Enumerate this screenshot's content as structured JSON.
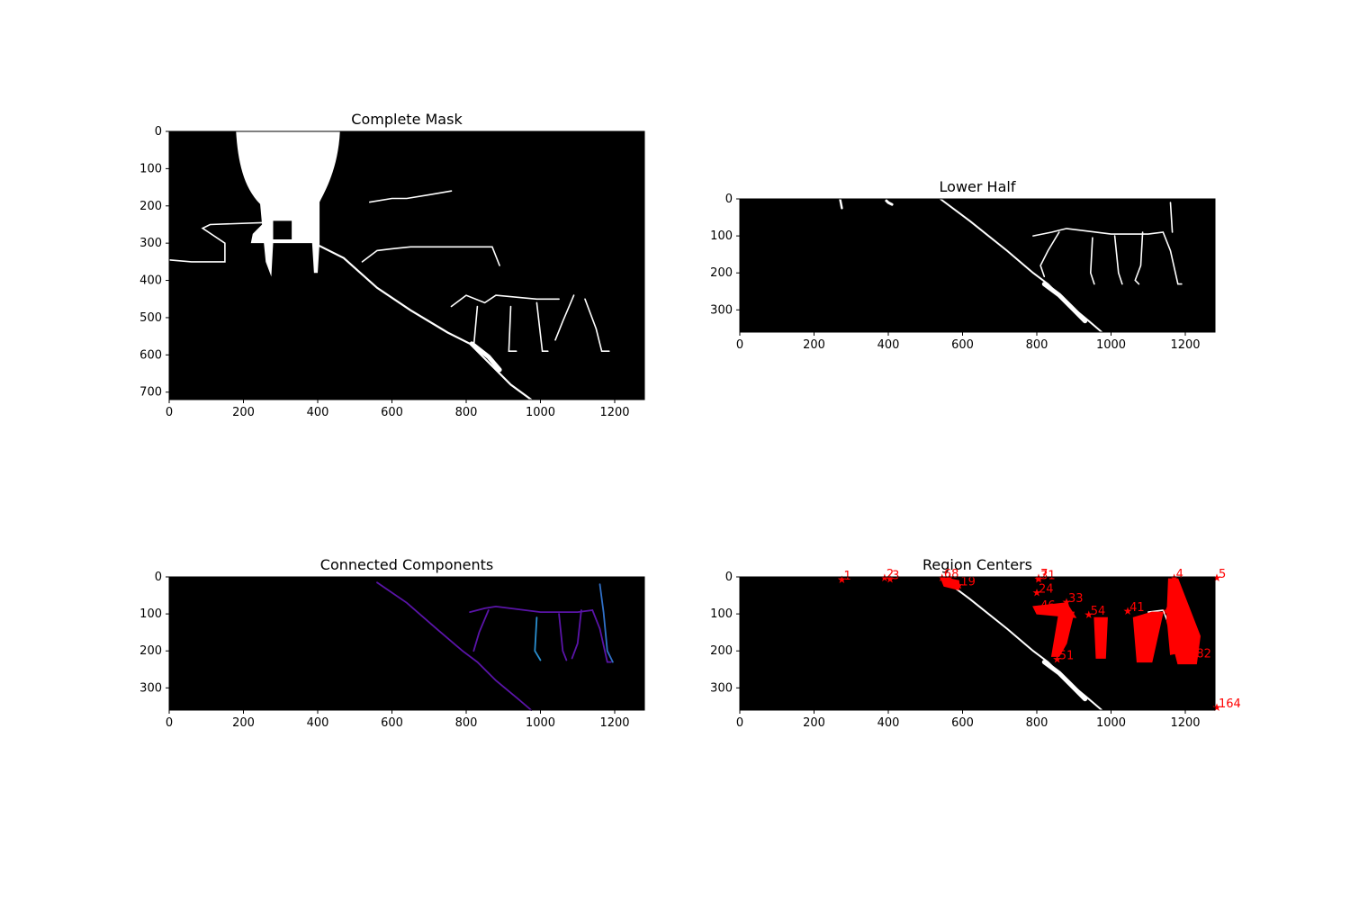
{
  "chart_data": [
    {
      "id": "complete-mask",
      "type": "image",
      "title": "Complete Mask",
      "xlim": [
        0,
        1280
      ],
      "ylim": [
        720,
        0
      ],
      "xticks": [
        0,
        200,
        400,
        600,
        800,
        1000,
        1200
      ],
      "yticks": [
        0,
        100,
        200,
        300,
        400,
        500,
        600,
        700
      ]
    },
    {
      "id": "lower-half",
      "type": "image",
      "title": "Lower Half",
      "xlim": [
        0,
        1280
      ],
      "ylim": [
        360,
        0
      ],
      "xticks": [
        0,
        200,
        400,
        600,
        800,
        1000,
        1200
      ],
      "yticks": [
        0,
        100,
        200,
        300
      ]
    },
    {
      "id": "connected-components",
      "type": "image",
      "title": "Connected Components",
      "xlim": [
        0,
        1280
      ],
      "ylim": [
        360,
        0
      ],
      "xticks": [
        0,
        200,
        400,
        600,
        800,
        1000,
        1200
      ],
      "yticks": [
        0,
        100,
        200,
        300
      ]
    },
    {
      "id": "region-centers",
      "type": "scatter",
      "title": "Region Centers",
      "xlim": [
        0,
        1280
      ],
      "ylim": [
        360,
        0
      ],
      "xticks": [
        0,
        200,
        400,
        600,
        800,
        1000,
        1200
      ],
      "yticks": [
        0,
        100,
        200,
        300
      ],
      "marker_color": "#ff0000",
      "points": [
        {
          "label": "1",
          "x": 275,
          "y": 10
        },
        {
          "label": "2",
          "x": 390,
          "y": 5
        },
        {
          "label": "3",
          "x": 405,
          "y": 8
        },
        {
          "label": "4",
          "x": 1170,
          "y": 5
        },
        {
          "label": "5",
          "x": 1285,
          "y": 5
        },
        {
          "label": "6",
          "x": 545,
          "y": 5
        },
        {
          "label": "7",
          "x": 805,
          "y": 5
        },
        {
          "label": "8",
          "x": 565,
          "y": 5
        },
        {
          "label": "9",
          "x": 1205,
          "y": 220
        },
        {
          "label": "19",
          "x": 590,
          "y": 25
        },
        {
          "label": "24",
          "x": 800,
          "y": 45
        },
        {
          "label": "31",
          "x": 805,
          "y": 8
        },
        {
          "label": "33",
          "x": 880,
          "y": 70
        },
        {
          "label": "41",
          "x": 1045,
          "y": 95
        },
        {
          "label": "46",
          "x": 805,
          "y": 90
        },
        {
          "label": "51",
          "x": 855,
          "y": 225
        },
        {
          "label": "54",
          "x": 940,
          "y": 105
        },
        {
          "label": "57",
          "x": 1150,
          "y": 95
        },
        {
          "label": "82",
          "x": 1225,
          "y": 220
        },
        {
          "label": "164",
          "x": 1285,
          "y": 355
        }
      ]
    }
  ]
}
